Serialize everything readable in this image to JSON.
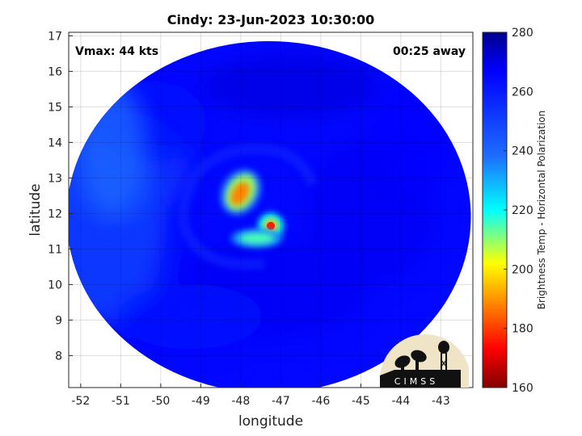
{
  "chart_data": {
    "type": "heatmap",
    "title": "Cindy: 23-Jun-2023 10:30:00",
    "xlabel": "longitude",
    "ylabel": "latitude",
    "xlim": [
      -52.3,
      -42.2
    ],
    "ylim": [
      7.1,
      17.1
    ],
    "xticks": [
      "-52",
      "-51",
      "-50",
      "-49",
      "-48",
      "-47",
      "-46",
      "-45",
      "-44",
      "-43"
    ],
    "xtick_values": [
      -52,
      -51,
      -50,
      -49,
      -48,
      -47,
      -46,
      -45,
      -44,
      -43
    ],
    "yticks": [
      "17",
      "16",
      "15",
      "14",
      "13",
      "12",
      "11",
      "10",
      "9",
      "8"
    ],
    "ytick_values": [
      17,
      16,
      15,
      14,
      13,
      12,
      11,
      10,
      9,
      8
    ],
    "grid": true,
    "annotations": {
      "vmax": "Vmax: 44 kts",
      "away": "00:25 away"
    },
    "colorbar": {
      "label": "Brightness Temp - Horizontal Polarization",
      "min": 160,
      "max": 280,
      "ticks": [
        "280",
        "260",
        "240",
        "220",
        "200",
        "180",
        "160"
      ],
      "tick_values": [
        280,
        260,
        240,
        220,
        200,
        180,
        160
      ],
      "colormap": "jet"
    },
    "swath": {
      "center_lon": -47.3,
      "center_lat": 11.9,
      "radius_deg_lon": 5.05,
      "radius_deg_lat": 4.95,
      "background_temp": 265
    },
    "features": [
      {
        "name": "cold-core-north",
        "lon": -48.0,
        "lat": 12.6,
        "temp": 188
      },
      {
        "name": "cold-core-south",
        "lon": -47.25,
        "lat": 11.65,
        "temp": 176
      },
      {
        "name": "warm-band-south",
        "lon": -47.6,
        "lat": 11.3,
        "temp": 215
      },
      {
        "name": "western-dry-slot",
        "lon": -51.2,
        "lat": 13.8,
        "temp": 240
      }
    ]
  },
  "logo": {
    "text": "CIMSS",
    "colors": {
      "disc": "#efe4c6",
      "shape": "#111111"
    }
  }
}
